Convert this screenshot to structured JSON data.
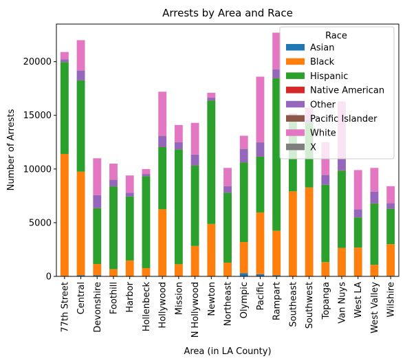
{
  "chart_data": {
    "type": "bar",
    "stacked": true,
    "title": "Arrests by Area and Race",
    "xlabel": "Area (in LA County)",
    "ylabel": "Number of Arrests",
    "ylim": [
      0,
      23500
    ],
    "yticks": [
      0,
      5000,
      10000,
      15000,
      20000
    ],
    "ytick_labels": [
      "0",
      "5000",
      "10000",
      "15000",
      "20000"
    ],
    "grid": false,
    "legend": {
      "title": "Race",
      "placement": "top-right"
    },
    "categories": [
      "77th Street",
      "Central",
      "Devonshire",
      "Foothill",
      "Harbor",
      "Hollenbeck",
      "Hollywood",
      "Mission",
      "N Hollywood",
      "Newton",
      "Northeast",
      "Olympic",
      "Pacific",
      "Rampart",
      "Southeast",
      "Southwest",
      "Topanga",
      "Van Nuys",
      "West LA",
      "West Valley",
      "Wilshire"
    ],
    "series": [
      {
        "name": "Asian",
        "color": "#1f77b4",
        "values": [
          50,
          100,
          100,
          30,
          30,
          20,
          50,
          30,
          30,
          30,
          30,
          300,
          200,
          100,
          20,
          30,
          30,
          50,
          30,
          30,
          50
        ]
      },
      {
        "name": "Black",
        "color": "#ff7f0e",
        "values": [
          11350,
          9650,
          1050,
          650,
          1450,
          750,
          6200,
          1100,
          2800,
          4850,
          1250,
          2900,
          5750,
          4150,
          7900,
          8250,
          1300,
          2600,
          2650,
          1050,
          2950
        ]
      },
      {
        "name": "Hispanic",
        "color": "#2ca02c",
        "values": [
          8550,
          8500,
          5200,
          7700,
          5950,
          8550,
          5800,
          10700,
          7500,
          11500,
          6500,
          7400,
          5200,
          14200,
          6800,
          6000,
          7200,
          7200,
          2800,
          5700,
          3300
        ]
      },
      {
        "name": "Native American",
        "color": "#d62728",
        "values": [
          10,
          20,
          10,
          10,
          10,
          10,
          20,
          10,
          10,
          10,
          10,
          20,
          20,
          20,
          10,
          10,
          10,
          20,
          10,
          10,
          10
        ]
      },
      {
        "name": "Other",
        "color": "#9467bd",
        "values": [
          250,
          900,
          1200,
          600,
          350,
          200,
          1000,
          650,
          1000,
          250,
          600,
          1250,
          1300,
          800,
          400,
          300,
          900,
          1200,
          750,
          1100,
          500
        ]
      },
      {
        "name": "Pacific Islander",
        "color": "#8c564b",
        "values": [
          10,
          20,
          10,
          10,
          10,
          10,
          20,
          10,
          10,
          10,
          10,
          20,
          20,
          20,
          10,
          10,
          10,
          20,
          10,
          10,
          10
        ]
      },
      {
        "name": "White",
        "color": "#e377c2",
        "values": [
          680,
          2810,
          3430,
          1500,
          1600,
          460,
          4110,
          1600,
          2950,
          450,
          1700,
          1210,
          6110,
          3410,
          60,
          1100,
          3050,
          5210,
          3650,
          2200,
          1580
        ]
      },
      {
        "name": "X",
        "color": "#7f7f7f",
        "values": [
          0,
          0,
          0,
          0,
          0,
          0,
          0,
          0,
          0,
          0,
          0,
          0,
          0,
          0,
          0,
          0,
          0,
          0,
          0,
          0,
          0
        ]
      }
    ]
  }
}
